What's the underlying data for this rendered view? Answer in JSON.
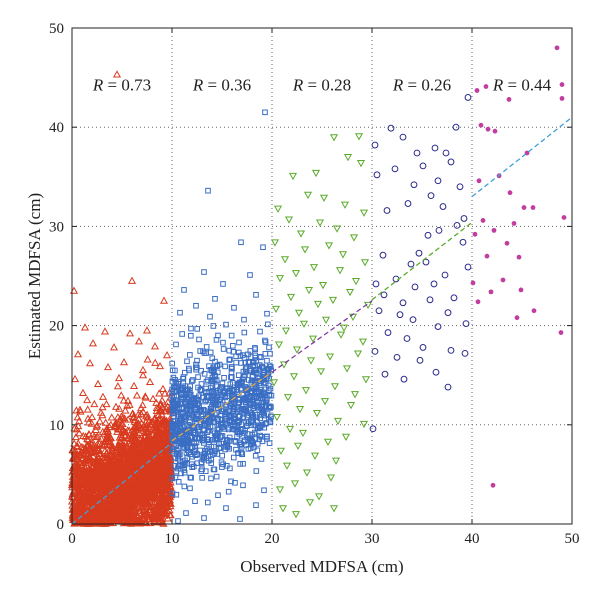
{
  "chart_data": {
    "type": "scatter",
    "title": "",
    "xlabel": "Observed MDFSA (cm)",
    "ylabel": "Estimated MDFSA (cm)",
    "xlim": [
      0,
      50
    ],
    "ylim": [
      0,
      50
    ],
    "x_ticks": [
      "0",
      "10",
      "20",
      "30",
      "40",
      "50"
    ],
    "y_ticks": [
      "0",
      "10",
      "20",
      "30",
      "40",
      "50"
    ],
    "grid": "dotted vertical lines at x = 10, 20, 30, 40 and horizontal lines at each y tick",
    "legend": "none",
    "annotations": [
      {
        "letter": "R",
        "text": " = 0.73",
        "x": 5
      },
      {
        "letter": "R",
        "text": " = 0.36",
        "x": 15
      },
      {
        "letter": "R",
        "text": " = 0.28",
        "x": 25
      },
      {
        "letter": "R",
        "text": " = 0.26",
        "x": 35
      },
      {
        "letter": "R",
        "text": " = 0.44",
        "x": 45
      }
    ],
    "series": [
      {
        "range": "0-10 cm",
        "marker": "triangle-up",
        "color": "#d83a1e",
        "points": [
          [
            4.5,
            45.3
          ],
          [
            0.2,
            23.5
          ],
          [
            6,
            24.5
          ],
          [
            9.2,
            22.5
          ],
          [
            1.3,
            19.8
          ],
          [
            3.3,
            19.4
          ],
          [
            5.8,
            19.2
          ],
          [
            7.5,
            19.5
          ],
          [
            2.1,
            18.2
          ],
          [
            4.2,
            17.8
          ],
          [
            6.7,
            18.4
          ],
          [
            8.3,
            17.9
          ],
          [
            0.6,
            17.1
          ],
          [
            9.5,
            17
          ],
          [
            1.8,
            16.2
          ],
          [
            3.6,
            15.8
          ],
          [
            5.2,
            16.3
          ],
          [
            7.1,
            15.5
          ],
          [
            8.8,
            15.9
          ],
          [
            0.3,
            14.6
          ],
          [
            2.6,
            14.1
          ],
          [
            4.7,
            14.7
          ],
          [
            6.2,
            13.9
          ],
          [
            7.8,
            14.3
          ],
          [
            9.1,
            13.6
          ],
          [
            1.1,
            13.2
          ],
          [
            3.1,
            12.8
          ],
          [
            5.6,
            12.4
          ],
          [
            8.1,
            12.6
          ],
          [
            0.8,
            11.5
          ],
          [
            2.9,
            11.2
          ],
          [
            4.4,
            11.8
          ],
          [
            6.9,
            11.1
          ],
          [
            9.3,
            11.4
          ],
          [
            1.6,
            10.6
          ],
          [
            7.4,
            10.3
          ],
          [
            5.1,
            10.7
          ]
        ],
        "dense_fill": {
          "x_range": [
            0,
            10
          ],
          "y_range": [
            0,
            10
          ],
          "pattern": "mass of overlapping points spanning the full 0-10 cm observed range, densest below 10 cm"
        }
      },
      {
        "range": "10-20 cm",
        "marker": "square",
        "color": "#3a6ec4",
        "points": [
          [
            19.3,
            41.5
          ],
          [
            13.6,
            33.6
          ],
          [
            16.9,
            28.4
          ],
          [
            19.1,
            27.9
          ],
          [
            13.2,
            25.4
          ],
          [
            17.8,
            25.1
          ],
          [
            15.1,
            24.2
          ],
          [
            11.2,
            23.6
          ],
          [
            18.4,
            23.1
          ],
          [
            14.3,
            22.7
          ],
          [
            12.4,
            22
          ],
          [
            16.2,
            21.8
          ],
          [
            19.5,
            21.2
          ],
          [
            10.8,
            21.3
          ],
          [
            13.8,
            20.9
          ],
          [
            17.2,
            20.6
          ],
          [
            15.4,
            20.1
          ],
          [
            11.9,
            19.7
          ],
          [
            18.8,
            19.4
          ],
          [
            14.6,
            19
          ],
          [
            12.7,
            18.6
          ],
          [
            16.7,
            18.3
          ],
          [
            10.4,
            18.1
          ],
          [
            19.7,
            17.8
          ],
          [
            13.1,
            17.4
          ],
          [
            17.6,
            17.1
          ],
          [
            15.8,
            16.6
          ],
          [
            11.5,
            16.4
          ],
          [
            18.1,
            16
          ],
          [
            14.1,
            15.7
          ],
          [
            10.6,
            0.3
          ],
          [
            11.4,
            1.1
          ],
          [
            13.2,
            0.6
          ],
          [
            15.4,
            1.6
          ],
          [
            16.8,
            0.5
          ],
          [
            12.3,
            2.3
          ],
          [
            18.4,
            1.9
          ],
          [
            14.6,
            2.9
          ],
          [
            19.2,
            3.4
          ],
          [
            11.8,
            3.6
          ],
          [
            17.1,
            3.9
          ],
          [
            13.9,
            4.6
          ],
          [
            10.9,
            5.1
          ],
          [
            15.9,
            4.3
          ]
        ],
        "dense_fill": {
          "x_range": [
            10,
            20
          ],
          "y_range": [
            5,
            16
          ],
          "pattern": "dense cloud following the fitted trend"
        }
      },
      {
        "range": "20-30 cm",
        "marker": "triangle-down",
        "color": "#5aaa2a",
        "points": [
          [
            26.2,
            39
          ],
          [
            28.7,
            39.1
          ],
          [
            27.6,
            37
          ],
          [
            28.9,
            36.4
          ],
          [
            24.4,
            35.4
          ],
          [
            22.1,
            35.1
          ],
          [
            23.6,
            33.2
          ],
          [
            25.2,
            32.9
          ],
          [
            27.3,
            32.2
          ],
          [
            20.6,
            31.8
          ],
          [
            29.2,
            31.4
          ],
          [
            21.7,
            30.7
          ],
          [
            24.8,
            30.4
          ],
          [
            26.5,
            29.8
          ],
          [
            22.9,
            29.3
          ],
          [
            28.2,
            28.9
          ],
          [
            20.3,
            28.4
          ],
          [
            25.7,
            28.1
          ],
          [
            23.3,
            27.7
          ],
          [
            27.1,
            27.2
          ],
          [
            21.3,
            26.7
          ],
          [
            29.3,
            26.4
          ],
          [
            24.2,
            25.9
          ],
          [
            26.8,
            25.6
          ],
          [
            22.4,
            25.3
          ],
          [
            20.8,
            24.8
          ],
          [
            28.4,
            24.5
          ],
          [
            25.1,
            24.1
          ],
          [
            23.7,
            23.6
          ],
          [
            27.8,
            23.4
          ],
          [
            21.9,
            22.9
          ],
          [
            26.1,
            22.6
          ],
          [
            24.6,
            22.2
          ],
          [
            29.6,
            22.1
          ],
          [
            20.4,
            21.7
          ],
          [
            22.7,
            21.3
          ],
          [
            28.1,
            20.9
          ],
          [
            25.4,
            20.6
          ],
          [
            23.2,
            20.2
          ],
          [
            27.2,
            19.8
          ],
          [
            21.4,
            19.5
          ],
          [
            26.9,
            19.1
          ],
          [
            24.1,
            18.7
          ],
          [
            29.1,
            18.4
          ],
          [
            20.7,
            18.1
          ],
          [
            22.5,
            17.6
          ],
          [
            28.6,
            17.2
          ],
          [
            25.8,
            16.9
          ],
          [
            23.9,
            16.5
          ],
          [
            21.2,
            16.1
          ],
          [
            27.5,
            15.7
          ],
          [
            24.9,
            15.4
          ],
          [
            22.2,
            14.9
          ],
          [
            29.4,
            14.6
          ],
          [
            20.2,
            14.3
          ],
          [
            26.3,
            13.9
          ],
          [
            23.4,
            13.5
          ],
          [
            28.3,
            13.1
          ],
          [
            21.6,
            12.8
          ],
          [
            25.3,
            12.4
          ],
          [
            27.9,
            12
          ],
          [
            22.8,
            11.6
          ],
          [
            24.5,
            11.2
          ],
          [
            20.5,
            10.8
          ],
          [
            26.6,
            10.4
          ],
          [
            29.2,
            10.1
          ],
          [
            21.8,
            9.6
          ],
          [
            23.1,
            9.2
          ],
          [
            27.4,
            8.8
          ],
          [
            25.6,
            8.3
          ],
          [
            22.6,
            7.9
          ],
          [
            20.9,
            7.4
          ],
          [
            24.3,
            6.9
          ],
          [
            26.4,
            6.4
          ],
          [
            21.5,
            5.9
          ],
          [
            23.5,
            5.2
          ],
          [
            25.9,
            4.7
          ],
          [
            22.3,
            4.1
          ],
          [
            20.8,
            3.5
          ],
          [
            24.7,
            2.8
          ],
          [
            23.8,
            2.2
          ],
          [
            21.1,
            1.6
          ],
          [
            22.4,
            1
          ],
          [
            26.2,
            1.6
          ]
        ]
      },
      {
        "range": "30-40 cm",
        "marker": "circle",
        "color": "#2a2a8c",
        "points": [
          [
            39.6,
            43
          ],
          [
            31.9,
            39.9
          ],
          [
            33.1,
            39
          ],
          [
            30.3,
            38.2
          ],
          [
            38.4,
            40
          ],
          [
            34.5,
            37.4
          ],
          [
            36.3,
            37.9
          ],
          [
            37.4,
            37.4
          ],
          [
            35.1,
            36.1
          ],
          [
            37.9,
            36.5
          ],
          [
            32.3,
            35.8
          ],
          [
            30.5,
            35.2
          ],
          [
            36.6,
            34.6
          ],
          [
            34.2,
            34.2
          ],
          [
            38.8,
            34
          ],
          [
            35.9,
            33.1
          ],
          [
            33.6,
            32.3
          ],
          [
            31.5,
            31.6
          ],
          [
            37.1,
            32
          ],
          [
            39.2,
            30.8
          ],
          [
            38.5,
            30.1
          ],
          [
            36.7,
            29.6
          ],
          [
            35.6,
            29.1
          ],
          [
            39.1,
            28.4
          ],
          [
            34.7,
            27.3
          ],
          [
            31.1,
            27.1
          ],
          [
            33.9,
            26.2
          ],
          [
            35.4,
            26.4
          ],
          [
            39.6,
            25.9
          ],
          [
            37.3,
            25.1
          ],
          [
            32.4,
            24.7
          ],
          [
            30.4,
            24.2
          ],
          [
            36.2,
            24.2
          ],
          [
            34.3,
            23.9
          ],
          [
            38.2,
            22.8
          ],
          [
            31.2,
            23.1
          ],
          [
            35.8,
            22.6
          ],
          [
            33.1,
            22.3
          ],
          [
            30.7,
            21.5
          ],
          [
            37.6,
            21.3
          ],
          [
            39.4,
            20.2
          ],
          [
            32.8,
            21.1
          ],
          [
            34.1,
            20.6
          ],
          [
            36.6,
            19.9
          ],
          [
            31.6,
            19.3
          ],
          [
            33.5,
            18.7
          ],
          [
            35.1,
            17.8
          ],
          [
            30.3,
            17.4
          ],
          [
            37.9,
            17.5
          ],
          [
            32.5,
            16.8
          ],
          [
            34.8,
            16.5
          ],
          [
            39.3,
            17.2
          ],
          [
            36.4,
            15.3
          ],
          [
            31.3,
            15.1
          ],
          [
            33.2,
            14.6
          ],
          [
            37.6,
            13.8
          ],
          [
            30.1,
            9.6
          ]
        ]
      },
      {
        "range": "40-50 cm",
        "marker": "dot",
        "color": "#c13ea0",
        "points": [
          [
            48.5,
            48
          ],
          [
            49,
            44.3
          ],
          [
            41.4,
            44.1
          ],
          [
            40.5,
            43.7
          ],
          [
            43.7,
            42.8
          ],
          [
            49,
            42.9
          ],
          [
            40.9,
            40.2
          ],
          [
            41.6,
            39.8
          ],
          [
            42.3,
            39.6
          ],
          [
            49.2,
            30.9
          ],
          [
            45.5,
            37.4
          ],
          [
            42.7,
            35.1
          ],
          [
            40.7,
            34.6
          ],
          [
            43.8,
            33.4
          ],
          [
            46.1,
            31.9
          ],
          [
            45.2,
            31.9
          ],
          [
            41.1,
            30.6
          ],
          [
            44.2,
            30.3
          ],
          [
            40.3,
            29.2
          ],
          [
            42.2,
            29.6
          ],
          [
            43.5,
            28.3
          ],
          [
            41.5,
            27
          ],
          [
            44.7,
            26.9
          ],
          [
            40.1,
            24.3
          ],
          [
            43.1,
            24.6
          ],
          [
            41.9,
            23.4
          ],
          [
            44.9,
            23.6
          ],
          [
            40.6,
            22.4
          ],
          [
            46.2,
            21.5
          ],
          [
            44.5,
            20.8
          ],
          [
            48.9,
            19.3
          ],
          [
            42.1,
            3.9
          ]
        ]
      }
    ],
    "fit_lines": [
      {
        "color": "#3fa0d8",
        "x": [
          0,
          10
        ],
        "y": [
          0,
          8.2
        ]
      },
      {
        "color": "#e8a93b",
        "x": [
          10,
          20
        ],
        "y": [
          8.4,
          15.3
        ]
      },
      {
        "color": "#7f3aa1",
        "x": [
          20,
          30
        ],
        "y": [
          15.3,
          22.5
        ]
      },
      {
        "color": "#5aaa2a",
        "x": [
          30,
          40
        ],
        "y": [
          22.6,
          30.4
        ]
      },
      {
        "color": "#3fa0d8",
        "x": [
          40,
          50
        ],
        "y": [
          33,
          41
        ]
      }
    ]
  }
}
